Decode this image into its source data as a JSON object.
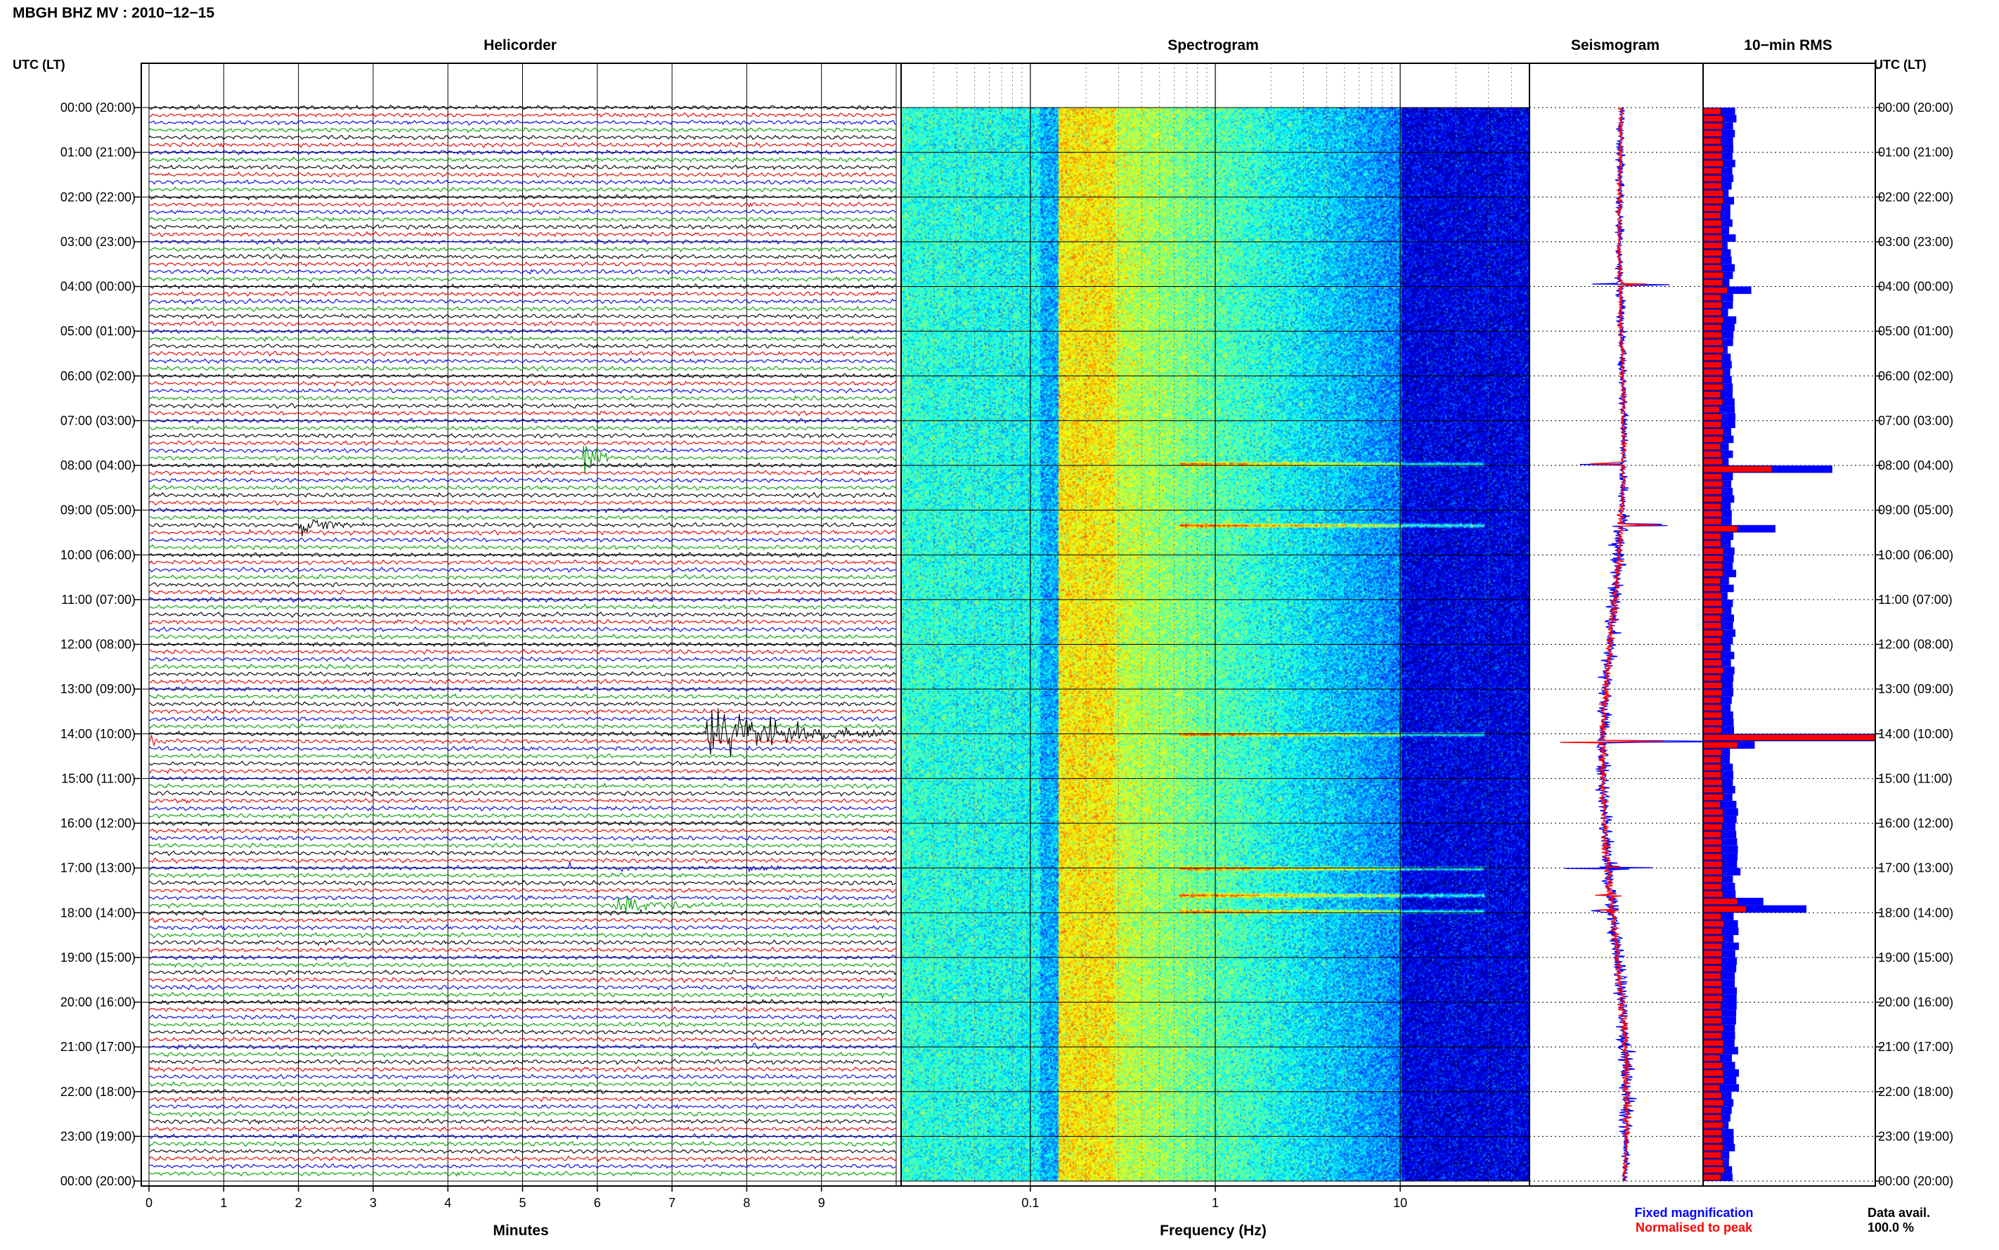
{
  "header": {
    "station_title": "MBGH BHZ MV : 2010−12−15",
    "time_axis_label": "UTC (LT)"
  },
  "panels": {
    "helicorder": "Helicorder",
    "spectrogram": "Spectrogram",
    "seismogram": "Seismogram",
    "rms": "10−min RMS"
  },
  "footer": {
    "minutes_label": "Minutes",
    "frequency_label": "Frequency (Hz)",
    "legend_fixed": "Fixed magnification",
    "legend_normalised": "Normalised to peak",
    "data_avail_label": "Data avail.",
    "data_avail_value": "100.0 %"
  },
  "colors": {
    "trace_cycle": [
      "#000000",
      "#e00000",
      "#0000e0",
      "#00a000"
    ],
    "fixed": "#0000ff",
    "normalised": "#ff0000"
  },
  "chart_data": {
    "type": "helicorder",
    "hour_labels": [
      "00:00 (20:00)",
      "01:00 (21:00)",
      "02:00 (22:00)",
      "03:00 (23:00)",
      "04:00 (00:00)",
      "05:00 (01:00)",
      "06:00 (02:00)",
      "07:00 (03:00)",
      "08:00 (04:00)",
      "09:00 (05:00)",
      "10:00 (06:00)",
      "11:00 (07:00)",
      "12:00 (08:00)",
      "13:00 (09:00)",
      "14:00 (10:00)",
      "15:00 (11:00)",
      "16:00 (12:00)",
      "17:00 (13:00)",
      "18:00 (14:00)",
      "19:00 (15:00)",
      "20:00 (16:00)",
      "21:00 (17:00)",
      "22:00 (18:00)",
      "23:00 (19:00)",
      "00:00 (20:00)"
    ],
    "helicorder": {
      "traces_per_hour": 6,
      "minutes_per_trace": 10,
      "x_ticks": [
        "0",
        "1",
        "2",
        "3",
        "4",
        "5",
        "6",
        "7",
        "8",
        "9"
      ],
      "xlim": [
        0,
        10
      ],
      "events": [
        {
          "hour": 1.25,
          "minute": 7.9,
          "duration": 0.4,
          "amp": 0.25,
          "color_index": 1
        },
        {
          "hour": 3.85,
          "minute": 7.0,
          "duration": 0.3,
          "amp": 0.5,
          "color_index": 3
        },
        {
          "hour": 5.0,
          "minute": 5.1,
          "duration": 0.3,
          "amp": 0.2,
          "color_index": 2
        },
        {
          "hour": 7.8,
          "minute": 5.8,
          "duration": 0.5,
          "amp": 3.0,
          "color_index": 3
        },
        {
          "hour": 9.33,
          "minute": 2.0,
          "duration": 0.9,
          "amp": 1.5,
          "color_index": 0
        },
        {
          "hour": 14.0,
          "minute": 7.4,
          "duration": 2.6,
          "amp": 4.0,
          "color_index": 2
        },
        {
          "hour": 14.17,
          "minute": 0.0,
          "duration": 0.6,
          "amp": 0.6,
          "color_index": 3
        },
        {
          "hour": 15.0,
          "minute": 6.0,
          "duration": 0.3,
          "amp": 0.3,
          "color_index": 3
        },
        {
          "hour": 17.0,
          "minute": 5.6,
          "duration": 0.4,
          "amp": 0.5,
          "color_index": 2
        },
        {
          "hour": 17.0,
          "minute": 6.3,
          "duration": 0.4,
          "amp": 0.5,
          "color_index": 2
        },
        {
          "hour": 17.0,
          "minute": 8.0,
          "duration": 1.0,
          "amp": 0.4,
          "color_index": 2
        },
        {
          "hour": 17.6,
          "minute": 0.0,
          "duration": 1.0,
          "amp": 0.9,
          "color_index": 2
        },
        {
          "hour": 17.6,
          "minute": 9.5,
          "duration": 0.5,
          "amp": 0.9,
          "color_index": 1
        },
        {
          "hour": 17.83,
          "minute": 6.2,
          "duration": 1.8,
          "amp": 1.1,
          "color_index": 3
        },
        {
          "hour": 19.83,
          "minute": 9.7,
          "duration": 0.3,
          "amp": 0.5,
          "color_index": 3
        },
        {
          "hour": 21.0,
          "minute": 8.0,
          "duration": 0.4,
          "amp": 0.5,
          "color_index": 2
        }
      ]
    },
    "spectrogram": {
      "x_scale": "log",
      "xlim": [
        0.02,
        50
      ],
      "x_tick_labels": [
        "0.1",
        "1",
        "10"
      ],
      "x_ticks": [
        0.1,
        1,
        10
      ],
      "colormap": "jet",
      "event_hours": [
        7.96,
        9.33,
        14.0,
        17.0,
        17.6,
        17.96
      ]
    },
    "seismogram": {
      "series": [
        {
          "name": "Fixed magnification",
          "color": "#0000ff"
        },
        {
          "name": "Normalised to peak",
          "color": "#ff0000"
        }
      ],
      "spike_hours": [
        3.95,
        7.96,
        9.33,
        14.17,
        17.0,
        17.6,
        17.96
      ]
    },
    "rms_10min": {
      "bins_per_hour": 6,
      "baseline_fixed": 0.17,
      "baseline_normalised": 0.11,
      "spikes": [
        {
          "hour": 3.95,
          "fixed": 0.28,
          "normalised": 0.14
        },
        {
          "hour": 7.95,
          "fixed": 0.75,
          "normalised": 0.4
        },
        {
          "hour": 9.33,
          "fixed": 0.42,
          "normalised": 0.2
        },
        {
          "hour": 14.0,
          "fixed": 1.0,
          "normalised": 1.0
        },
        {
          "hour": 14.17,
          "fixed": 0.3,
          "normalised": 0.2
        },
        {
          "hour": 17.6,
          "fixed": 0.35,
          "normalised": 0.2
        },
        {
          "hour": 17.83,
          "fixed": 0.6,
          "normalised": 0.25
        }
      ],
      "xlim": [
        0,
        1
      ]
    }
  }
}
